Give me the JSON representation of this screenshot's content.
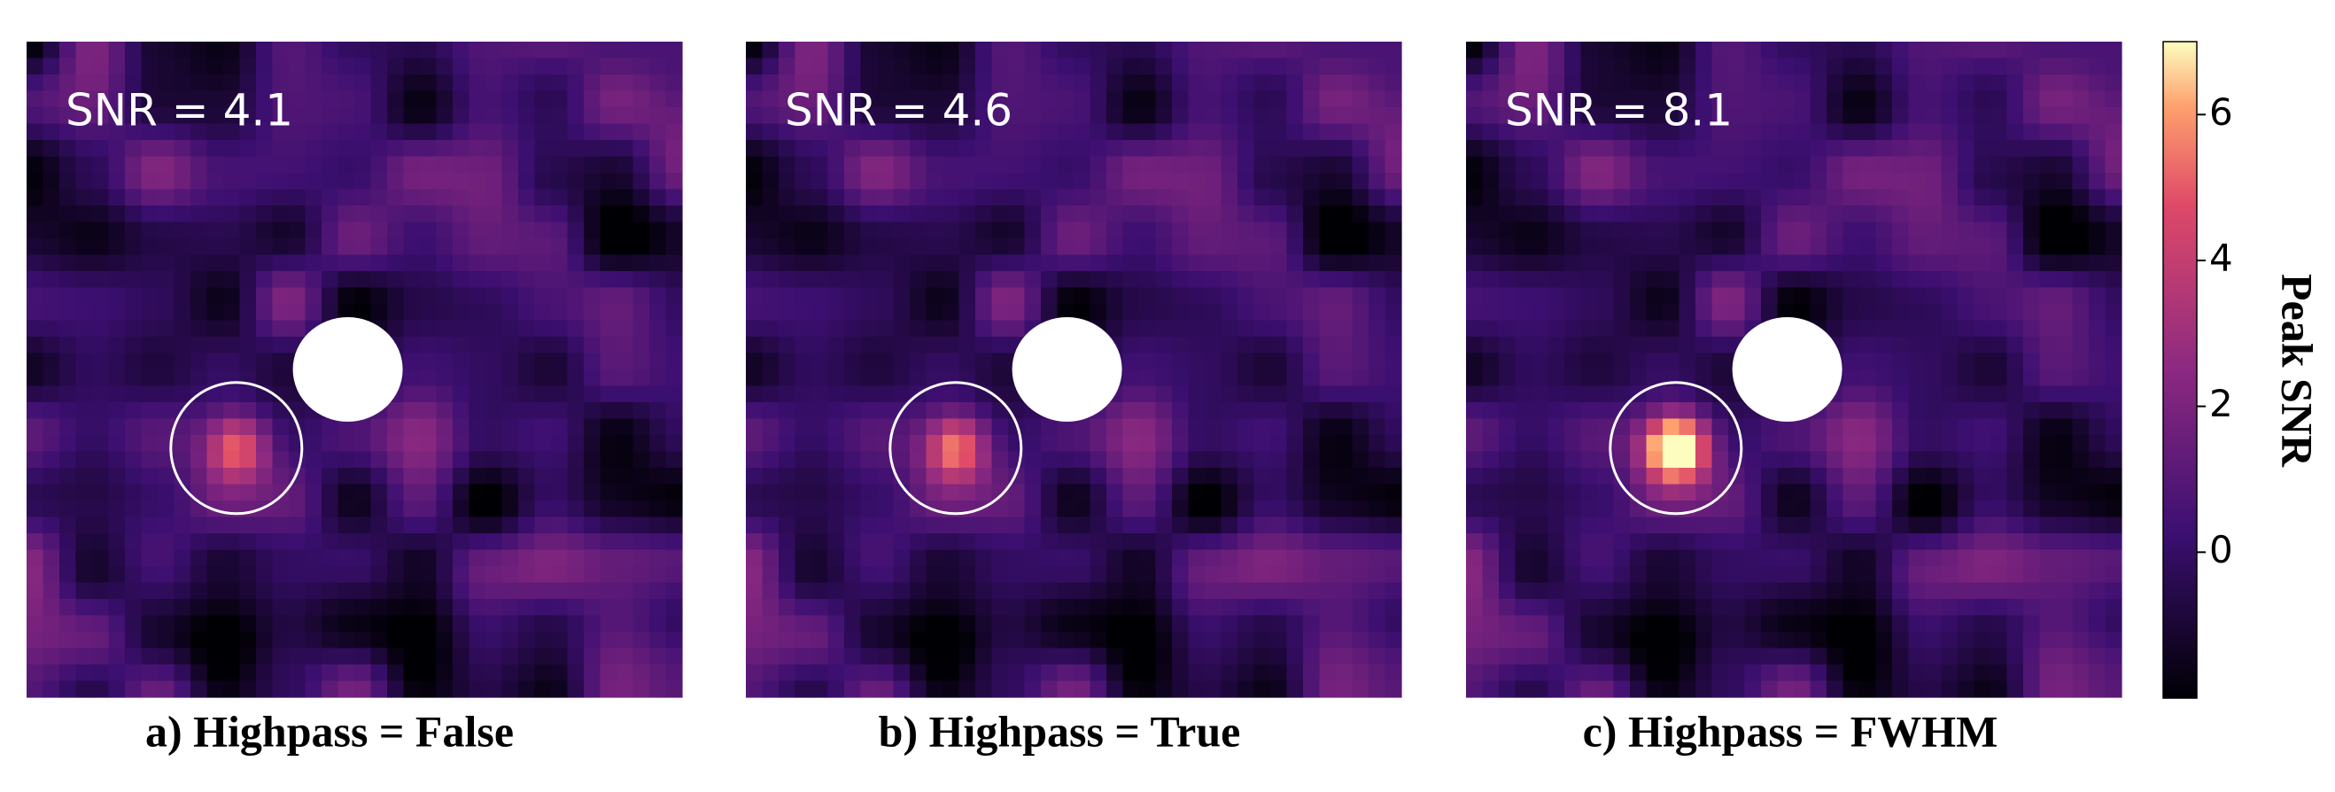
{
  "chart_data": {
    "type": "image-panels",
    "panels": [
      {
        "annotation": "SNR = 4.1",
        "caption": "a) Highpass = False"
      },
      {
        "annotation": "SNR = 4.6",
        "caption": "b) Highpass = True"
      },
      {
        "annotation": "SNR = 8.1",
        "caption": "c) Highpass = FWHM"
      }
    ],
    "colorbar": {
      "label": "Peak SNR",
      "lim": [
        -2,
        7
      ],
      "ticks": [
        0,
        2,
        4,
        6
      ],
      "colormap": "magma"
    }
  }
}
